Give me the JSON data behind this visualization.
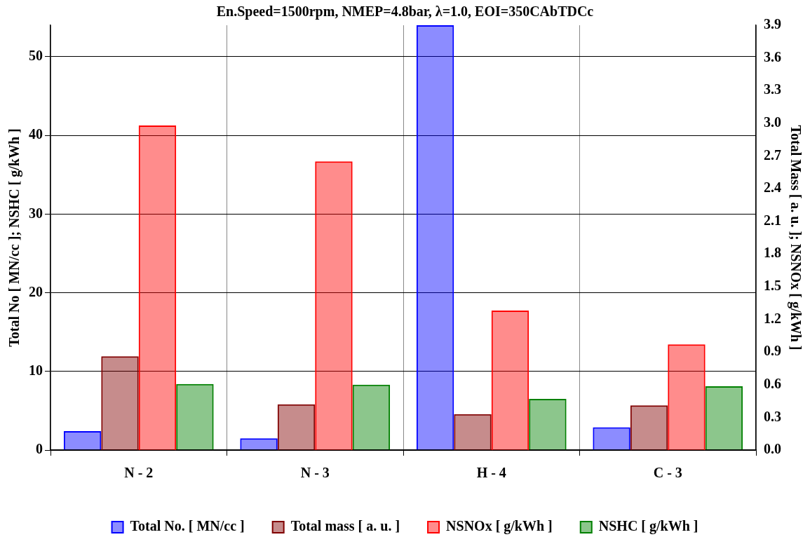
{
  "chart_data": {
    "type": "bar",
    "title": "En.Speed=1500rpm, NMEP=4.8bar, λ=1.0, EOI=350CAbTDCc",
    "ylabel": "Total No [ MN/cc ]; NSHC [ g/kWh ]",
    "y2label": "Total Mass [ a. u. ]; NSNOx [ g/kWh ]",
    "categories": [
      "N - 2",
      "N - 3",
      "H - 4",
      "C - 3"
    ],
    "series": [
      {
        "name": "Total No. [ MN/cc ]",
        "color": "#0000ff",
        "values": [
          2.4,
          1.5,
          54,
          2.9
        ]
      },
      {
        "name": "Total mass [ a. u. ]",
        "color": "#800000",
        "axis": "y2",
        "values": [
          0.86,
          0.42,
          0.33,
          0.41
        ]
      },
      {
        "name": "NSNOx [ g/kWh ]",
        "color": "#ff0000",
        "axis": "y2",
        "values": [
          2.98,
          2.65,
          1.28,
          0.97
        ]
      },
      {
        "name": "NSHC [ g/kWh ]",
        "color": "#008000",
        "values": [
          8.4,
          8.3,
          6.5,
          8.1
        ]
      }
    ],
    "ylim": [
      0,
      54
    ],
    "yticks": [
      0,
      10,
      20,
      30,
      40,
      50
    ],
    "y2lim": [
      0,
      3.9
    ],
    "y2ticks": [
      {
        "value": 0,
        "label": "0.0"
      },
      {
        "value": 0.3,
        "label": "0.3"
      },
      {
        "value": 0.6,
        "label": "0.6"
      },
      {
        "value": 0.9,
        "label": "0.9"
      },
      {
        "value": 1.2,
        "label": "1.2"
      },
      {
        "value": 1.5,
        "label": "1.5"
      },
      {
        "value": 1.8,
        "label": "1.8"
      },
      {
        "value": 2.1,
        "label": "2.1"
      },
      {
        "value": 2.4,
        "label": "2.4"
      },
      {
        "value": 2.7,
        "label": "2.7"
      },
      {
        "value": 3.0,
        "label": "3.0"
      },
      {
        "value": 3.3,
        "label": "3.3"
      },
      {
        "value": 3.6,
        "label": "3.6"
      },
      {
        "value": 3.9,
        "label": "3.9"
      }
    ],
    "grid": true,
    "legend": "bottom"
  }
}
